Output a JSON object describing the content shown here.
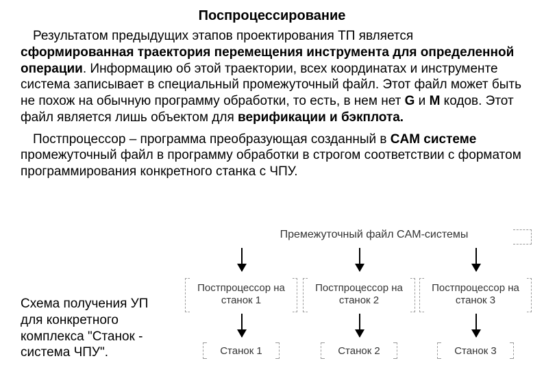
{
  "title": "Поспроцессирование",
  "para1_a": "Результатом предыдущих этапов проектирования ТП является ",
  "para1_b": "сформированная траектория перемещения инструмента для определенной операции",
  "para1_c": ". Информацию об этой траектории, всех координатах и инструменте система записывает в специальный промежуточный файл. Этот файл может быть не похож на обычную программу обработки, то есть, в нем нет ",
  "para1_d": "G",
  "para1_e": " и ",
  "para1_f": "M",
  "para1_g": " кодов. Этот файл является лишь объектом для ",
  "para1_h": "верификации и бэкплота.",
  "para2_a": "Постпроцессор – программа преобразующая созданный в ",
  "para2_b": "CAM системе",
  "para2_c": " промежуточный файл в программу обработки в строгом соответствии с форматом программирования конкретного станка с ЧПУ.",
  "caption": "Схема получения УП для  конкретного комплекса \"Станок - система ЧПУ\".",
  "diagram": {
    "top": "Премежуточный файл CAM-системы",
    "pp1": "Постпроцессор на станок 1",
    "pp2": "Постпроцессор на станок 2",
    "pp3": "Постпроцессор на станок 3",
    "s1": "Станок 1",
    "s2": "Станок 2",
    "s3": "Станок 3"
  }
}
